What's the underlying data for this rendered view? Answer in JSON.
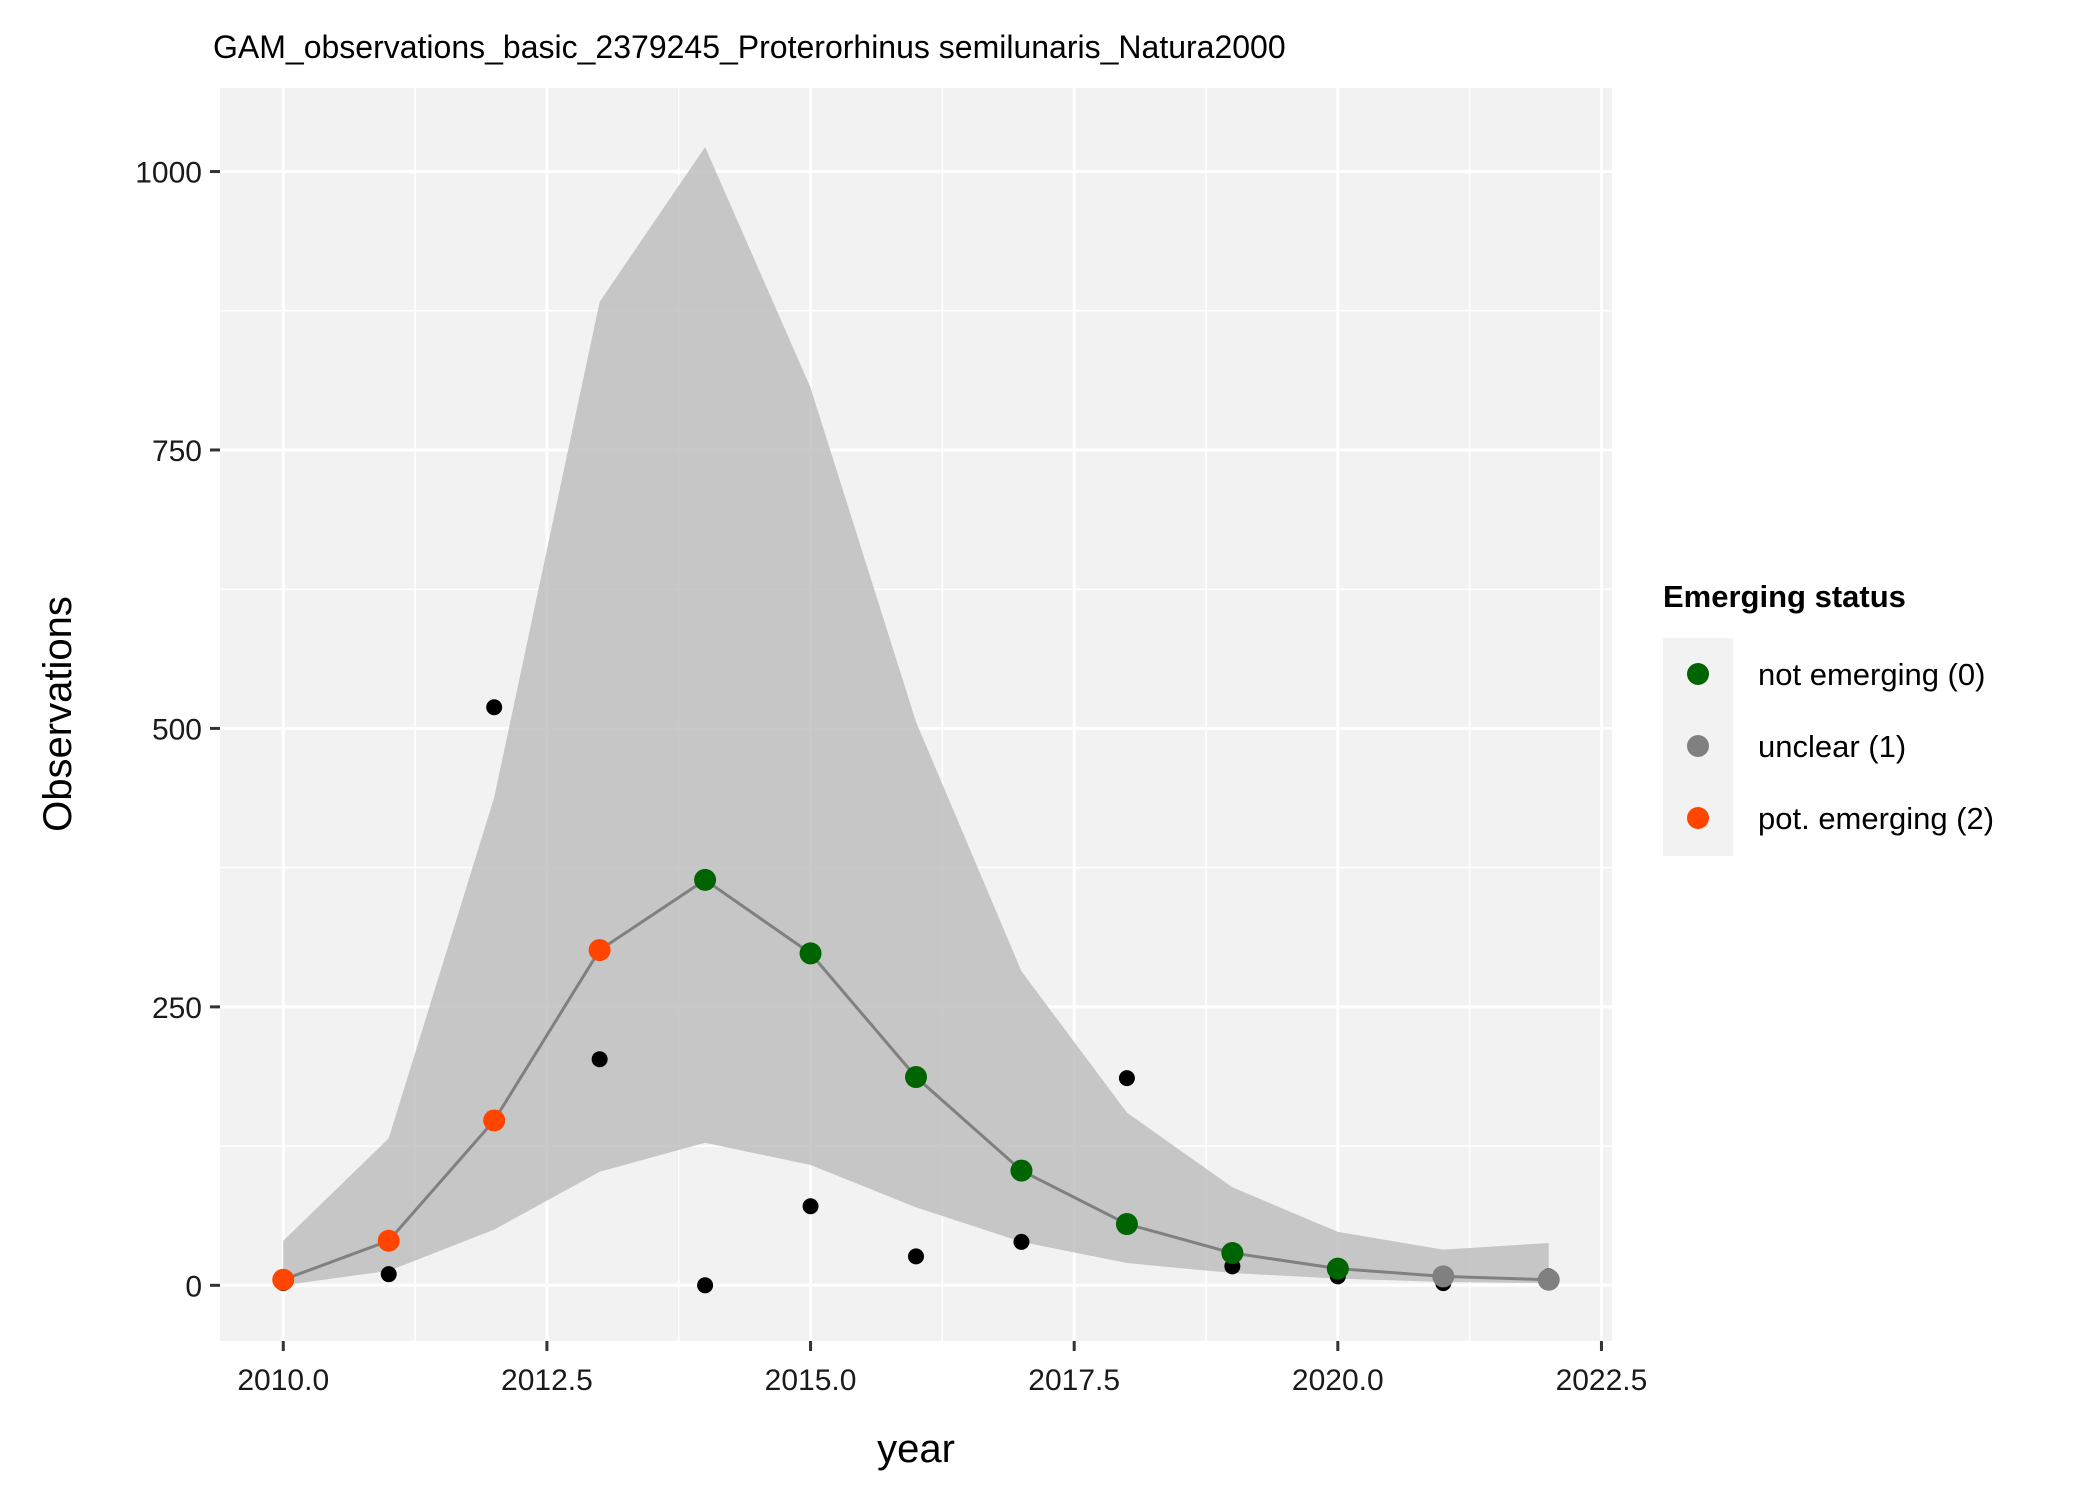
{
  "chart_data": {
    "type": "line",
    "title": "GAM_observations_basic_2379245_Proterorhinus semilunaris_Natura2000",
    "xlabel": "year",
    "ylabel": "Observations",
    "xlim": [
      2009.4,
      2022.6
    ],
    "ylim": [
      -50,
      1075
    ],
    "x_ticks": [
      2010.0,
      2012.5,
      2015.0,
      2017.5,
      2020.0,
      2022.5
    ],
    "x_tick_labels": [
      "2010.0",
      "2012.5",
      "2015.0",
      "2017.5",
      "2020.0",
      "2022.5"
    ],
    "y_ticks": [
      0,
      250,
      500,
      750,
      1000
    ],
    "y_tick_labels": [
      "0",
      "250",
      "500",
      "750",
      "1000"
    ],
    "grid": true,
    "legend_position": "right",
    "years": [
      2010,
      2011,
      2012,
      2013,
      2014,
      2015,
      2016,
      2017,
      2018,
      2019,
      2020,
      2021,
      2022
    ],
    "fitted": [
      5,
      40,
      148,
      301,
      364,
      298,
      187,
      103,
      55,
      29,
      15,
      8,
      5
    ],
    "lower": [
      0,
      13,
      50,
      102,
      128,
      108,
      70,
      39,
      20,
      11,
      6,
      3,
      2
    ],
    "upper": [
      40,
      132,
      438,
      883,
      1022,
      806,
      506,
      282,
      155,
      88,
      48,
      32,
      38
    ],
    "status": [
      2,
      2,
      2,
      2,
      0,
      0,
      0,
      0,
      0,
      0,
      0,
      1,
      1
    ],
    "observed": [
      2,
      10,
      519,
      203,
      0,
      71,
      26,
      39,
      186,
      17,
      8,
      2,
      8
    ],
    "legend": {
      "title": "Emerging status",
      "items": [
        {
          "label": "not emerging (0)",
          "code": 0,
          "color": "#006400"
        },
        {
          "label": "unclear (1)",
          "code": 1,
          "color": "#808080"
        },
        {
          "label": "pot. emerging (2)",
          "code": 2,
          "color": "#FF4500"
        }
      ]
    },
    "colors": {
      "panel_background": "#f2f2f2",
      "grid": "#ffffff",
      "ribbon": "#bebebe",
      "line": "#808080",
      "observed_points": "#000000"
    }
  }
}
